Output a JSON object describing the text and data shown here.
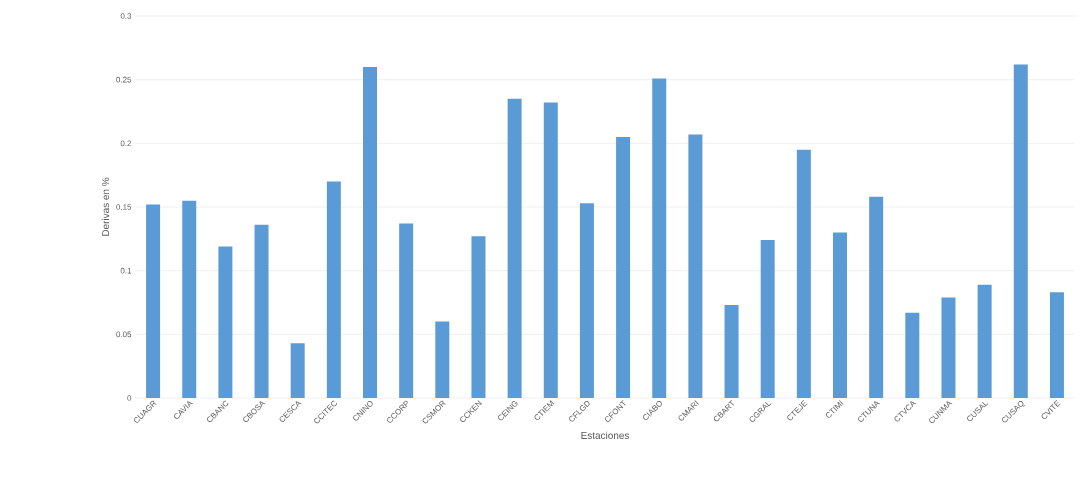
{
  "chart_data": {
    "type": "bar",
    "xlabel": "Estaciones",
    "ylabel": "Derivas en %",
    "categories": [
      "CUAGR",
      "CAVIA",
      "CBANC",
      "CBOSA",
      "CESCA",
      "CCITEC",
      "CNINO",
      "CCORP",
      "CSMOR",
      "CCKEN",
      "CEING",
      "CTIEM",
      "CFLGD",
      "CFONT",
      "CIABO",
      "CMARI",
      "CBART",
      "CGRAL",
      "CTEJE",
      "CTIMI",
      "CTUNA",
      "CTVCA",
      "CUNMA",
      "CUSAL",
      "CUSAQ",
      "CVITE"
    ],
    "values": [
      0.152,
      0.155,
      0.119,
      0.136,
      0.043,
      0.17,
      0.26,
      0.137,
      0.06,
      0.127,
      0.235,
      0.232,
      0.153,
      0.205,
      0.251,
      0.207,
      0.073,
      0.124,
      0.195,
      0.13,
      0.158,
      0.067,
      0.079,
      0.089,
      0.262,
      0.083
    ],
    "color": "#5b9bd5",
    "ylim": [
      0,
      0.3
    ],
    "yticks": [
      0,
      0.05,
      0.1,
      0.15,
      0.2,
      0.25,
      0.3
    ],
    "grid": "y"
  }
}
